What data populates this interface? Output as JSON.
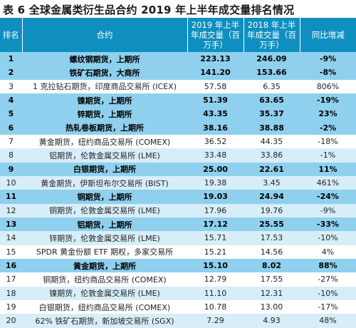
{
  "title": "表 6  全球金属类衍生品合约 2019 年上半年成交量排名情况",
  "headers": {
    "rank": "排名",
    "contract": "合约",
    "vol2019": "2019 年上半年成交量（百万手）",
    "vol2018": "2018 年上半年成交量（百万手）",
    "growth": "同比增减"
  },
  "rows": [
    {
      "rank": "1",
      "contract": "螺纹钢期货，上期所",
      "vol2019": "223.13",
      "vol2018": "246.09",
      "growth": "-9%",
      "highlight": true
    },
    {
      "rank": "2",
      "contract": "铁矿石期货，大商所",
      "vol2019": "141.20",
      "vol2018": "153.66",
      "growth": "-8%",
      "highlight": true
    },
    {
      "rank": "3",
      "contract": "1 克拉钻石期货，印度商品交易所 (ICEX)",
      "vol2019": "57.58",
      "vol2018": "6.35",
      "growth": "806%",
      "highlight": false
    },
    {
      "rank": "4",
      "contract": "镍期货，上期所",
      "vol2019": "51.39",
      "vol2018": "63.65",
      "growth": "-19%",
      "highlight": true
    },
    {
      "rank": "5",
      "contract": "锌期货，上期所",
      "vol2019": "43.35",
      "vol2018": "35.37",
      "growth": "23%",
      "highlight": true
    },
    {
      "rank": "6",
      "contract": "热轧卷板期货，上期所",
      "vol2019": "38.16",
      "vol2018": "38.88",
      "growth": "-2%",
      "highlight": true
    },
    {
      "rank": "7",
      "contract": "黄金期货，纽约商品交易所 (COMEX)",
      "vol2019": "36.52",
      "vol2018": "44.35",
      "growth": "-18%",
      "highlight": false
    },
    {
      "rank": "8",
      "contract": "铝期货，伦敦金属交易所 (LME)",
      "vol2019": "33.48",
      "vol2018": "33.86",
      "growth": "-1%",
      "highlight": false
    },
    {
      "rank": "9",
      "contract": "白银期货，上期所",
      "vol2019": "25.00",
      "vol2018": "22.61",
      "growth": "11%",
      "highlight": true
    },
    {
      "rank": "10",
      "contract": "黄金期货，伊斯坦布尔交易所 (BIST)",
      "vol2019": "19.38",
      "vol2018": "3.45",
      "growth": "461%",
      "highlight": false
    },
    {
      "rank": "11",
      "contract": "铜期货，上期所",
      "vol2019": "19.03",
      "vol2018": "24.94",
      "growth": "-24%",
      "highlight": true
    },
    {
      "rank": "12",
      "contract": "铜期货，伦敦金属交易所 (LME)",
      "vol2019": "17.96",
      "vol2018": "19.76",
      "growth": "-9%",
      "highlight": false
    },
    {
      "rank": "13",
      "contract": "铝期货，上期所",
      "vol2019": "17.12",
      "vol2018": "25.55",
      "growth": "-33%",
      "highlight": true
    },
    {
      "rank": "14",
      "contract": "锌期货，伦敦金属交易所 (LME)",
      "vol2019": "15.71",
      "vol2018": "17.53",
      "growth": "-10%",
      "highlight": false
    },
    {
      "rank": "15",
      "contract": "SPDR 黄金份额 ETF 期权，多家交易所",
      "vol2019": "15.21",
      "vol2018": "14.56",
      "growth": "4%",
      "highlight": false
    },
    {
      "rank": "16",
      "contract": "黄金期货，上期所",
      "vol2019": "15.10",
      "vol2018": "8.02",
      "growth": "88%",
      "highlight": true
    },
    {
      "rank": "17",
      "contract": "铜期货，纽约商品交易所 (COMEX)",
      "vol2019": "12.79",
      "vol2018": "17.55",
      "growth": "-27%",
      "highlight": false
    },
    {
      "rank": "18",
      "contract": "镍期货，伦敦金属交易所 (LME)",
      "vol2019": "11.10",
      "vol2018": "12.31",
      "growth": "-10%",
      "highlight": false
    },
    {
      "rank": "19",
      "contract": "白银期货，纽约商品交易所 (COMEX)",
      "vol2019": "10.78",
      "vol2018": "13.00",
      "growth": "-17%",
      "highlight": false
    },
    {
      "rank": "20",
      "contract": "62% 铁矿石期货，新加坡交易所 (SGX)",
      "vol2019": "7.29",
      "vol2018": "4.93",
      "growth": "48%",
      "highlight": false
    }
  ],
  "colors": {
    "header_bg": "#0e8fbf",
    "highlight_row": "#8fd0ee",
    "alt_row": "#d7eef9"
  }
}
